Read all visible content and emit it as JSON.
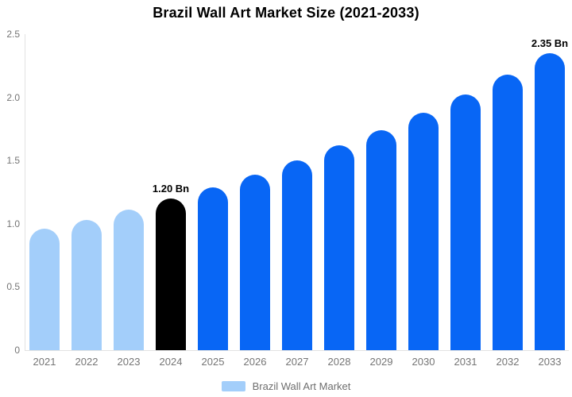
{
  "title": "Brazil Wall Art Market Size (2021-2033)",
  "legend": {
    "label": "Brazil Wall Art Market",
    "swatch_color": "#a3cefa"
  },
  "colors": {
    "historical_bar": "#a3cefa",
    "base_year_bar": "#000000",
    "forecast_bar": "#0866f5",
    "axis_text": "#757575",
    "axis_line": "#e2e2e2",
    "value_label_text": "#000000",
    "title_text": "#000000",
    "background": "#ffffff"
  },
  "chart_data": {
    "type": "bar",
    "title": "Brazil Wall Art Market Size (2021-2033)",
    "xlabel": "",
    "ylabel": "",
    "unit": "Bn",
    "ylim": [
      0,
      2.5
    ],
    "ytick_labels": [
      "0",
      "0.5",
      "1.0",
      "1.5",
      "2.0",
      "2.5"
    ],
    "ytick_values": [
      0,
      0.5,
      1.0,
      1.5,
      2.0,
      2.5
    ],
    "grid": false,
    "legend_position": "bottom",
    "categories": [
      "2021",
      "2022",
      "2023",
      "2024",
      "2025",
      "2026",
      "2027",
      "2028",
      "2029",
      "2030",
      "2031",
      "2032",
      "2033"
    ],
    "series": [
      {
        "name": "Brazil Wall Art Market",
        "values": [
          0.96,
          1.03,
          1.11,
          1.2,
          1.29,
          1.39,
          1.5,
          1.62,
          1.74,
          1.88,
          2.02,
          2.18,
          2.35
        ]
      }
    ],
    "bar_colors": [
      "#a3cefa",
      "#a3cefa",
      "#a3cefa",
      "#000000",
      "#0866f5",
      "#0866f5",
      "#0866f5",
      "#0866f5",
      "#0866f5",
      "#0866f5",
      "#0866f5",
      "#0866f5",
      "#0866f5"
    ],
    "data_labels": [
      {
        "category": "2024",
        "index": 3,
        "text": "1.20 Bn"
      },
      {
        "category": "2033",
        "index": 12,
        "text": "2.35 Bn"
      }
    ]
  }
}
